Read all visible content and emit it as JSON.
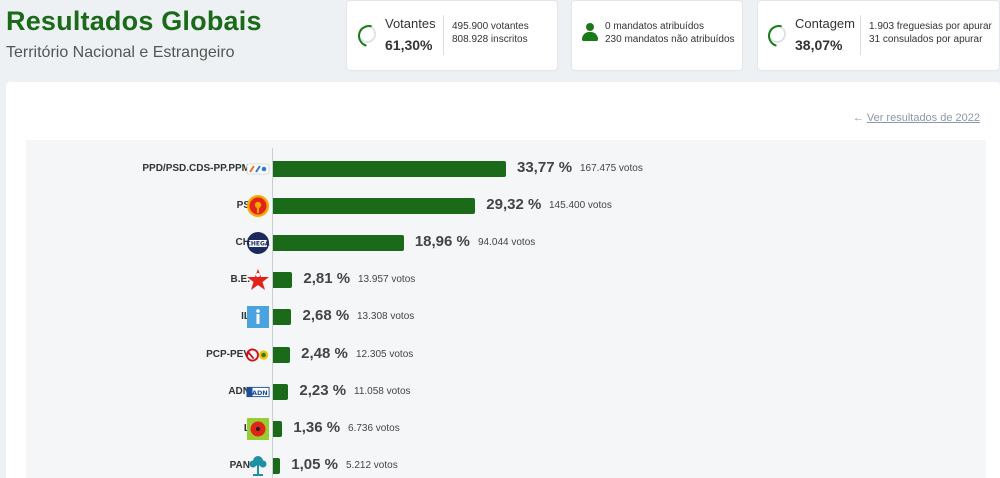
{
  "header": {
    "title": "Resultados Globais",
    "subtitle": "Território Nacional e Estrangeiro"
  },
  "cards": {
    "votantes": {
      "label": "Votantes",
      "value": "61,30%",
      "line1": "495.900 votantes",
      "line2": "808.928 inscritos"
    },
    "mandatos": {
      "line1": "0 mandatos atribuídos",
      "line2": "230 mandatos não atribuídos"
    },
    "contagem": {
      "label": "Contagem",
      "value": "38,07%",
      "line1": "1.903 freguesias por apurar",
      "line2": "31 consulados por apurar"
    }
  },
  "link_2022": "Ver resultados de 2022",
  "colors": {
    "accent": "#1a6a1a",
    "bar": "#1a6a1a"
  },
  "chart_data": {
    "type": "bar",
    "orientation": "horizontal",
    "categories": [
      "PPD/PSD.CDS-PP.PPM",
      "PS",
      "CH",
      "B.E.",
      "IL",
      "PCP-PEV",
      "ADN",
      "L",
      "PAN"
    ],
    "values": [
      33.77,
      29.32,
      18.96,
      2.81,
      2.68,
      2.48,
      2.23,
      1.36,
      1.05
    ],
    "pct_labels": [
      "33,77 %",
      "29,32 %",
      "18,96 %",
      "2,81 %",
      "2,68 %",
      "2,48 %",
      "2,23 %",
      "1,36 %",
      "1,05 %"
    ],
    "votes_labels": [
      "167.475 votos",
      "145.400 votos",
      "94.044 votos",
      "13.957 votos",
      "13.308 votos",
      "12.305 votos",
      "11.058 votos",
      "6.736 votos",
      "5.212 votos"
    ],
    "logo_icons": [
      "ad-logo-icon",
      "ps-fist-rose-icon",
      "chega-logo-icon",
      "be-star-icon",
      "il-logo-icon",
      "cdu-hammer-sickle-icon",
      "adn-logo-icon",
      "livre-poppy-icon",
      "pan-tree-icon"
    ],
    "title": "",
    "xlabel": "",
    "ylabel": ""
  }
}
